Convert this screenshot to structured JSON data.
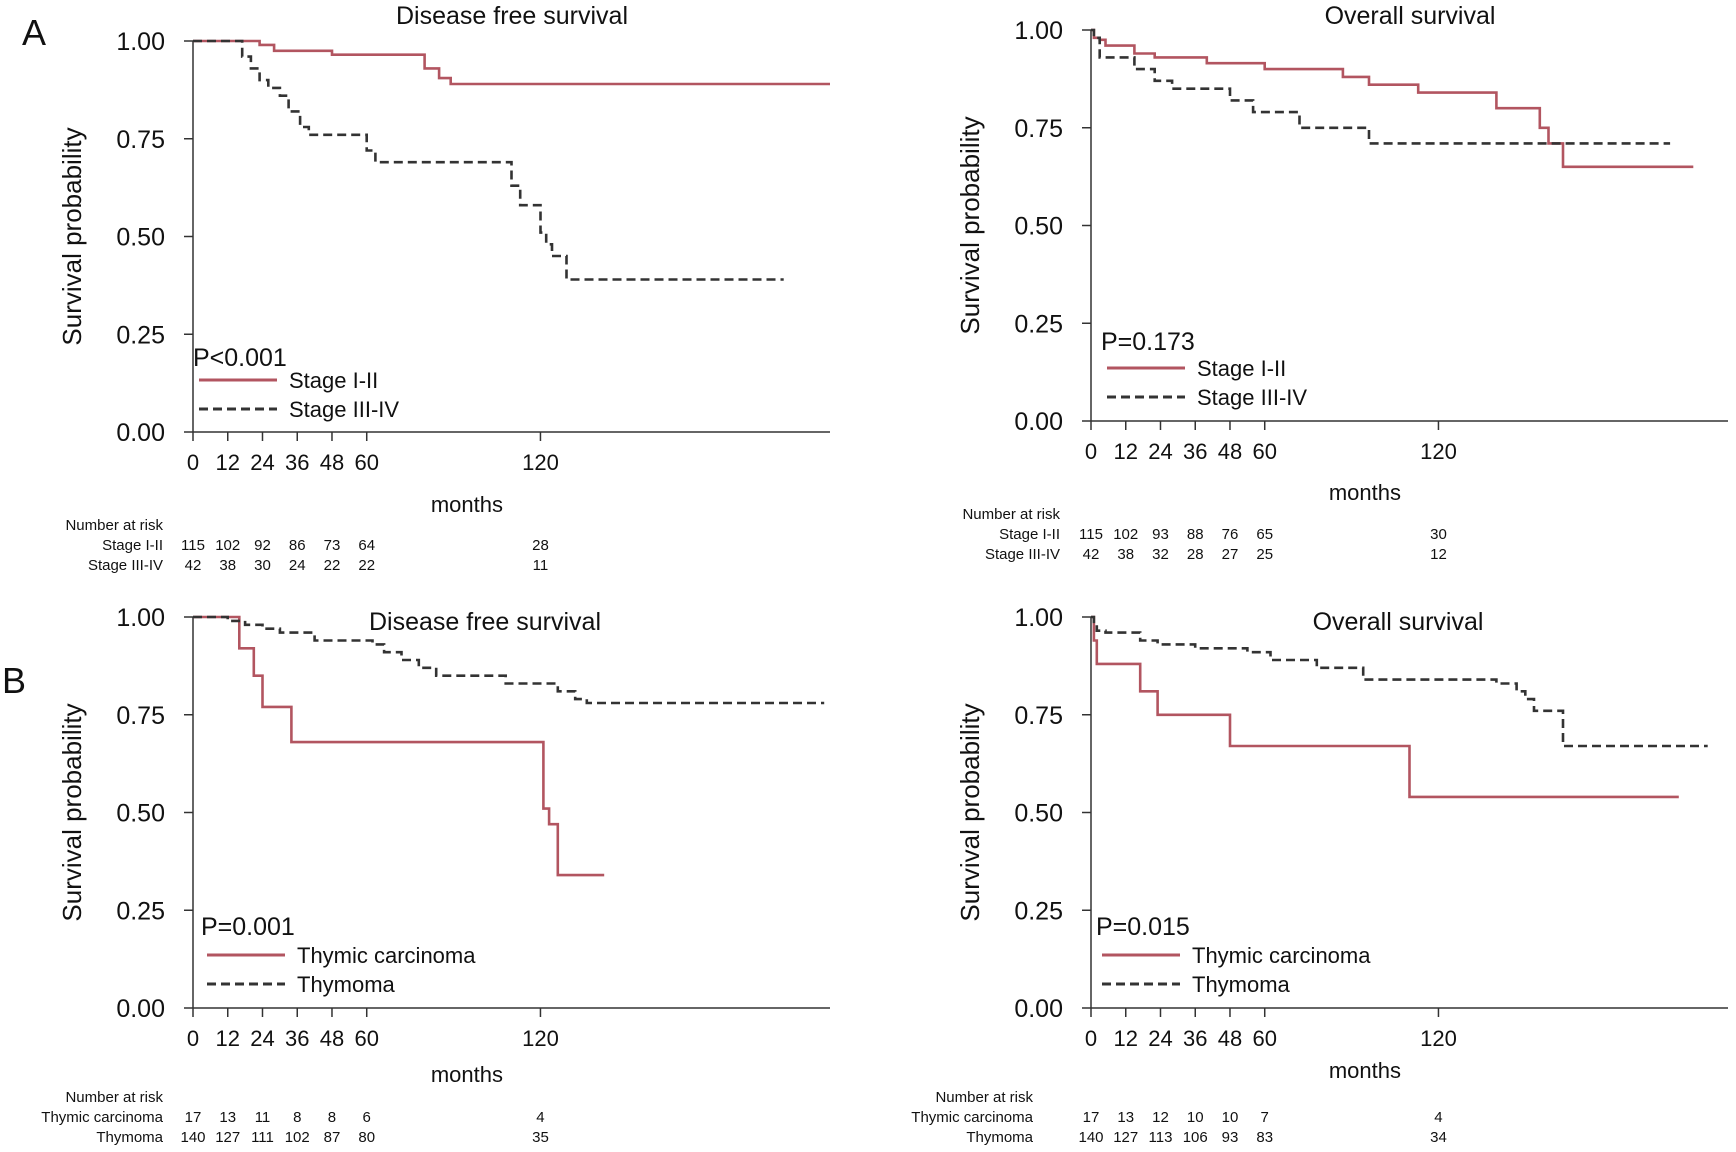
{
  "panel_labels": [
    "A",
    "B"
  ],
  "chart_data": [
    {
      "type": "line",
      "title": "Disease free survival",
      "xlabel": "months",
      "ylabel": "Survival probability",
      "xticks": [
        0,
        12,
        24,
        36,
        48,
        60,
        120
      ],
      "yticks": [
        "0.00",
        "0.25",
        "0.50",
        "0.75",
        "1.00"
      ],
      "xlim": [
        0,
        220
      ],
      "ylim": [
        0,
        1
      ],
      "grid": false,
      "legend_position": "bottom-left",
      "annotation": "P<0.001",
      "series": [
        {
          "name": "Stage I-II",
          "color": "#b25560",
          "dash": "solid",
          "x": [
            0,
            23,
            28,
            48,
            80,
            85,
            89,
            220
          ],
          "y": [
            1.0,
            0.99,
            0.975,
            0.965,
            0.93,
            0.905,
            0.89,
            0.89
          ]
        },
        {
          "name": "Stage III-IV",
          "color": "#333333",
          "dash": "dashed",
          "x": [
            0,
            17,
            20,
            23,
            26,
            30,
            33,
            37,
            40,
            60,
            63,
            110,
            113,
            120,
            122,
            124,
            129,
            138,
            204
          ],
          "y": [
            1.0,
            0.96,
            0.93,
            0.9,
            0.88,
            0.86,
            0.82,
            0.78,
            0.76,
            0.72,
            0.69,
            0.63,
            0.58,
            0.51,
            0.48,
            0.45,
            0.39,
            0.39,
            0.39
          ]
        }
      ],
      "risk_table": {
        "header": "Number at risk",
        "times": [
          0,
          12,
          24,
          36,
          48,
          60,
          120
        ],
        "rows": [
          {
            "label": "Stage I-II",
            "values": [
              "115",
              "102",
              "92",
              "86",
              "73",
              "64",
              "28"
            ]
          },
          {
            "label": "Stage III-IV",
            "values": [
              "42",
              "38",
              "30",
              "24",
              "22",
              "22",
              "11"
            ]
          }
        ]
      }
    },
    {
      "type": "line",
      "title": "Overall survival",
      "xlabel": "months",
      "ylabel": "Survival probability",
      "xticks": [
        0,
        12,
        24,
        36,
        48,
        60,
        120
      ],
      "yticks": [
        "0.00",
        "0.25",
        "0.50",
        "0.75",
        "1.00"
      ],
      "xlim": [
        0,
        220
      ],
      "ylim": [
        0,
        1
      ],
      "grid": false,
      "legend_position": "bottom-left",
      "annotation": "P=0.173",
      "series": [
        {
          "name": "Stage I-II",
          "color": "#b25560",
          "dash": "solid",
          "x": [
            0,
            1,
            3,
            5,
            15,
            22,
            40,
            60,
            87,
            96,
            113,
            140,
            155,
            158,
            163,
            208
          ],
          "y": [
            1.0,
            0.98,
            0.975,
            0.96,
            0.94,
            0.93,
            0.915,
            0.9,
            0.88,
            0.86,
            0.84,
            0.8,
            0.75,
            0.71,
            0.65,
            0.65
          ]
        },
        {
          "name": "Stage III-IV",
          "color": "#333333",
          "dash": "dashed",
          "x": [
            0,
            1,
            3,
            15,
            22,
            28,
            48,
            56,
            72,
            96,
            200
          ],
          "y": [
            1.0,
            0.98,
            0.93,
            0.9,
            0.87,
            0.85,
            0.82,
            0.79,
            0.75,
            0.71,
            0.71
          ]
        }
      ],
      "risk_table": {
        "header": "Number at risk",
        "times": [
          0,
          12,
          24,
          36,
          48,
          60,
          120
        ],
        "rows": [
          {
            "label": "Stage I-II",
            "values": [
              "115",
              "102",
              "93",
              "88",
              "76",
              "65",
              "30"
            ]
          },
          {
            "label": "Stage III-IV",
            "values": [
              "42",
              "38",
              "32",
              "28",
              "27",
              "25",
              "12"
            ]
          }
        ]
      }
    },
    {
      "type": "line",
      "title": "Disease free survival",
      "xlabel": "months",
      "ylabel": "Survival probability",
      "xticks": [
        0,
        12,
        24,
        36,
        48,
        60,
        120
      ],
      "yticks": [
        "0.00",
        "0.25",
        "0.50",
        "0.75",
        "1.00"
      ],
      "xlim": [
        0,
        220
      ],
      "ylim": [
        0,
        1
      ],
      "grid": false,
      "legend_position": "bottom-left",
      "annotation": "P=0.001",
      "series": [
        {
          "name": "Thymic carcinoma",
          "color": "#b25560",
          "dash": "solid",
          "x": [
            0,
            16,
            21,
            24,
            34,
            121,
            123,
            126,
            142
          ],
          "y": [
            1.0,
            0.92,
            0.85,
            0.77,
            0.68,
            0.51,
            0.47,
            0.34,
            0.34
          ]
        },
        {
          "name": "Thymoma",
          "color": "#333333",
          "dash": "dashed",
          "x": [
            0,
            12,
            18,
            24,
            30,
            42,
            62,
            66,
            72,
            78,
            84,
            108,
            126,
            132,
            136,
            218
          ],
          "y": [
            1.0,
            0.99,
            0.98,
            0.97,
            0.96,
            0.94,
            0.93,
            0.91,
            0.89,
            0.87,
            0.85,
            0.83,
            0.81,
            0.79,
            0.78,
            0.78
          ]
        }
      ],
      "risk_table": {
        "header": "Number at risk",
        "times": [
          0,
          12,
          24,
          36,
          48,
          60,
          120
        ],
        "rows": [
          {
            "label": "Thymic carcinoma",
            "values": [
              "17",
              "13",
              "11",
              "8",
              "8",
              "6",
              "4"
            ]
          },
          {
            "label": "Thymoma",
            "values": [
              "140",
              "127",
              "111",
              "102",
              "87",
              "80",
              "35"
            ]
          }
        ]
      }
    },
    {
      "type": "line",
      "title": "Overall survival",
      "xlabel": "months",
      "ylabel": "Survival probability",
      "xticks": [
        0,
        12,
        24,
        36,
        48,
        60,
        120
      ],
      "yticks": [
        "0.00",
        "0.25",
        "0.50",
        "0.75",
        "1.00"
      ],
      "xlim": [
        0,
        220
      ],
      "ylim": [
        0,
        1
      ],
      "grid": false,
      "legend_position": "bottom-left",
      "annotation": "P=0.015",
      "series": [
        {
          "name": "Thymic carcinoma",
          "color": "#b25560",
          "dash": "solid",
          "x": [
            0,
            1,
            2,
            17,
            23,
            48,
            110,
            203
          ],
          "y": [
            1.0,
            0.94,
            0.88,
            0.81,
            0.75,
            0.67,
            0.54,
            0.54
          ]
        },
        {
          "name": "Thymoma",
          "color": "#333333",
          "dash": "dashed",
          "x": [
            0,
            1,
            2,
            5,
            17,
            23,
            36,
            54,
            62,
            78,
            94,
            140,
            147,
            150,
            153,
            163,
            213
          ],
          "y": [
            1.0,
            0.98,
            0.965,
            0.96,
            0.94,
            0.93,
            0.92,
            0.91,
            0.89,
            0.87,
            0.84,
            0.83,
            0.81,
            0.79,
            0.76,
            0.67,
            0.67
          ]
        }
      ],
      "risk_table": {
        "header": "Number at risk",
        "times": [
          0,
          12,
          24,
          36,
          48,
          60,
          120
        ],
        "rows": [
          {
            "label": "Thymic carcinoma",
            "values": [
              "17",
              "13",
              "12",
              "10",
              "10",
              "7",
              "4"
            ]
          },
          {
            "label": "Thymoma",
            "values": [
              "140",
              "127",
              "113",
              "106",
              "93",
              "83",
              "34"
            ]
          }
        ]
      }
    }
  ]
}
